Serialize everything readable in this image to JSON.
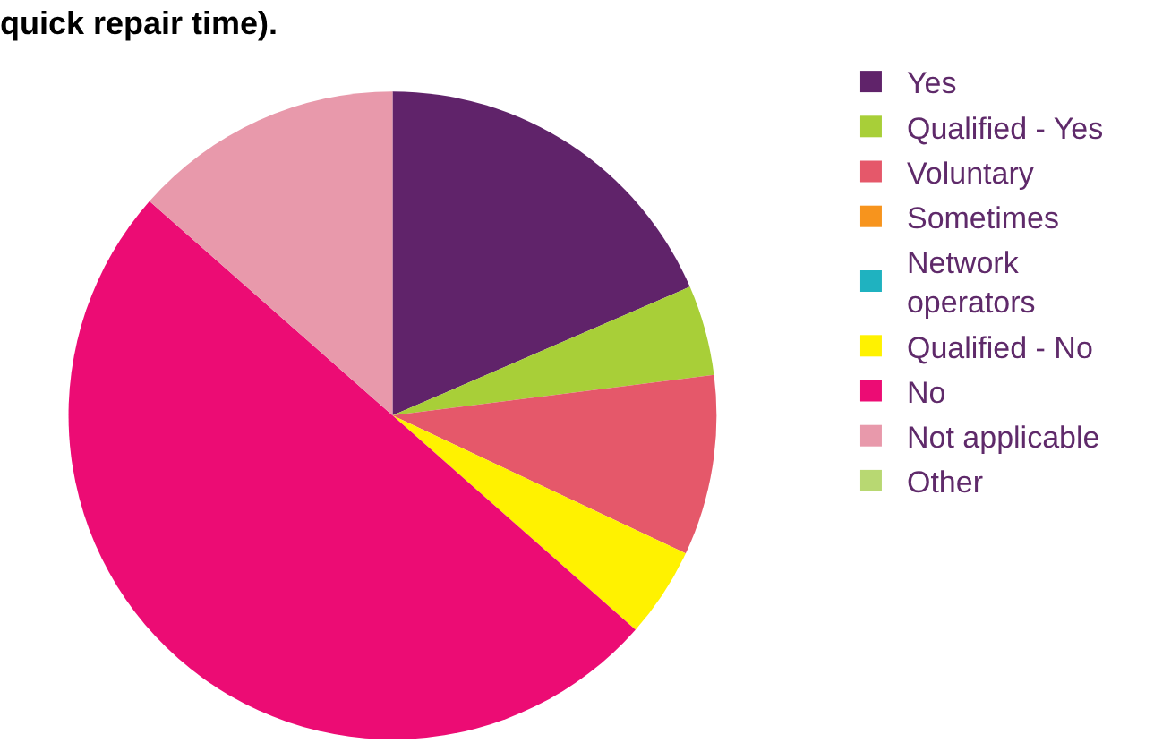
{
  "chart_data": {
    "type": "pie",
    "title": "quick repair time).",
    "categories": [
      "Yes",
      "Qualified - Yes",
      "Voluntary",
      "Sometimes",
      "Network operators",
      "Qualified - No",
      "No",
      "Not applicable",
      "Other"
    ],
    "values": [
      18.5,
      4.5,
      9,
      0,
      0,
      4.5,
      50,
      13.5,
      0
    ],
    "colors": [
      "#60236a",
      "#a8cf38",
      "#e5586a",
      "#f7941d",
      "#1fb2c0",
      "#fff200",
      "#ec0c74",
      "#e899ab",
      "#b8d872"
    ],
    "legend": "right"
  }
}
